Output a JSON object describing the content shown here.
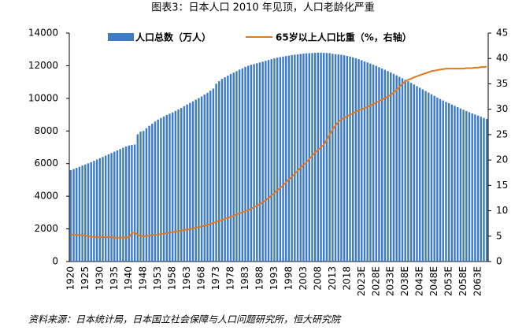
{
  "chart_data": {
    "type": "bar",
    "title": "图表3：日本人口 2010 年见顶，人口老龄化严重",
    "source": "资料来源：日本统计局，日本国立社会保障与人口问题研究所，恒大研究院",
    "categories": [
      "1920",
      null,
      null,
      null,
      null,
      "1925",
      null,
      null,
      null,
      null,
      "1930",
      null,
      null,
      null,
      null,
      "1935",
      null,
      null,
      null,
      null,
      "1940",
      null,
      null,
      null,
      null,
      "1948",
      null,
      null,
      null,
      null,
      "1953",
      null,
      null,
      null,
      null,
      "1958",
      null,
      null,
      null,
      null,
      "1963",
      null,
      null,
      null,
      null,
      "1968",
      null,
      null,
      null,
      null,
      "1973",
      null,
      null,
      null,
      null,
      "1978",
      null,
      null,
      null,
      null,
      "1983",
      null,
      null,
      null,
      null,
      "1988",
      null,
      null,
      null,
      null,
      "1993",
      null,
      null,
      null,
      null,
      "1998",
      null,
      null,
      null,
      null,
      "2003",
      null,
      null,
      null,
      null,
      "2008",
      null,
      null,
      null,
      null,
      "2013",
      null,
      null,
      null,
      null,
      "2018",
      null,
      null,
      null,
      null,
      "2023E",
      null,
      null,
      null,
      null,
      "2028E",
      null,
      null,
      null,
      null,
      "2033E",
      null,
      null,
      null,
      null,
      "2038E",
      null,
      null,
      null,
      null,
      "2043E",
      null,
      null,
      null,
      null,
      "2048E",
      null,
      null,
      null,
      null,
      "2053E",
      null,
      null,
      null,
      null,
      "2058E",
      null,
      null,
      null,
      null,
      "2063E",
      null,
      null,
      null
    ],
    "series": [
      {
        "name": "人口总数（万人）",
        "color": "#3d7cc4",
        "values": [
          5600,
          5670,
          5740,
          5810,
          5880,
          5950,
          6020,
          6090,
          6170,
          6250,
          6330,
          6410,
          6490,
          6570,
          6650,
          6730,
          6810,
          6890,
          6970,
          7050,
          7110,
          7140,
          7170,
          7800,
          7960,
          8000,
          8170,
          8320,
          8450,
          8580,
          8700,
          8800,
          8890,
          8980,
          9060,
          9140,
          9230,
          9320,
          9410,
          9520,
          9620,
          9720,
          9820,
          9920,
          10020,
          10120,
          10230,
          10340,
          10470,
          10600,
          10900,
          11050,
          11190,
          11290,
          11390,
          11490,
          11580,
          11670,
          11760,
          11840,
          11930,
          12000,
          12060,
          12100,
          12150,
          12200,
          12250,
          12300,
          12350,
          12400,
          12450,
          12490,
          12530,
          12560,
          12590,
          12620,
          12650,
          12680,
          12700,
          12720,
          12740,
          12760,
          12770,
          12780,
          12790,
          12800,
          12800,
          12790,
          12780,
          12770,
          12730,
          12710,
          12690,
          12670,
          12640,
          12600,
          12560,
          12510,
          12460,
          12400,
          12340,
          12270,
          12200,
          12130,
          12060,
          11990,
          11910,
          11830,
          11750,
          11670,
          11590,
          11500,
          11410,
          11320,
          11230,
          11140,
          11050,
          10950,
          10850,
          10750,
          10650,
          10550,
          10450,
          10350,
          10250,
          10150,
          10050,
          9960,
          9870,
          9780,
          9700,
          9620,
          9540,
          9460,
          9380,
          9300,
          9220,
          9150,
          9080,
          9010,
          8940,
          8870,
          8800,
          8740
        ]
      },
      {
        "name": "65岁以上人口比重（%，右轴）",
        "color": "#e2781e",
        "type": "line",
        "axis": "y2",
        "values": [
          5.3,
          5.3,
          5.3,
          5.2,
          5.2,
          5.1,
          5.0,
          4.9,
          4.8,
          4.8,
          4.8,
          4.8,
          4.8,
          4.8,
          4.8,
          4.7,
          4.7,
          4.7,
          4.7,
          4.8,
          4.8,
          5.6,
          5.7,
          5.3,
          5.0,
          5.0,
          5.0,
          5.1,
          5.2,
          5.3,
          5.3,
          5.4,
          5.5,
          5.6,
          5.7,
          5.8,
          5.9,
          6.0,
          6.1,
          6.2,
          6.3,
          6.4,
          6.5,
          6.7,
          6.8,
          6.9,
          7.1,
          7.2,
          7.4,
          7.6,
          7.8,
          8.0,
          8.2,
          8.4,
          8.6,
          8.8,
          9.0,
          9.3,
          9.5,
          9.7,
          9.9,
          10.1,
          10.4,
          10.7,
          11.0,
          11.3,
          11.7,
          12.1,
          12.5,
          13.0,
          13.5,
          14.0,
          14.5,
          15.0,
          15.6,
          16.2,
          16.7,
          17.3,
          17.9,
          18.5,
          19.0,
          19.5,
          20.2,
          20.8,
          21.5,
          22.0,
          22.5,
          23.0,
          24.0,
          25.0,
          26.0,
          26.8,
          27.5,
          28.0,
          28.3,
          28.6,
          28.9,
          29.2,
          29.5,
          29.8,
          30.0,
          30.2,
          30.5,
          30.7,
          31.0,
          31.3,
          31.6,
          31.9,
          32.2,
          32.5,
          32.8,
          33.3,
          33.8,
          34.4,
          35.0,
          35.5,
          35.8,
          36.0,
          36.3,
          36.5,
          36.7,
          36.9,
          37.1,
          37.3,
          37.5,
          37.6,
          37.7,
          37.8,
          37.9,
          38.0,
          38.0,
          38.0,
          38.0,
          38.0,
          38.0,
          38.0,
          38.1,
          38.1,
          38.1,
          38.2,
          38.2,
          38.3,
          38.3,
          38.4
        ]
      }
    ],
    "ylim": [
      0,
      14000
    ],
    "yticks": [
      0,
      2000,
      4000,
      6000,
      8000,
      10000,
      12000,
      14000
    ],
    "y2lim": [
      0,
      45
    ],
    "y2ticks": [
      0,
      5,
      10,
      15,
      20,
      25,
      30,
      35,
      40,
      45
    ]
  }
}
